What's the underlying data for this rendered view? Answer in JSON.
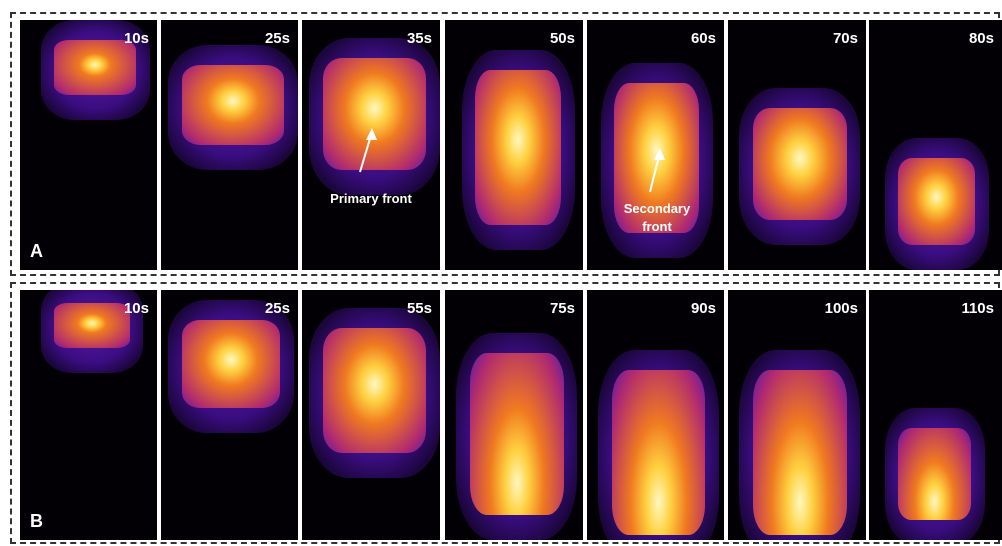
{
  "panels": [
    {
      "label": "A",
      "frames": [
        {
          "time": "10s"
        },
        {
          "time": "25s"
        },
        {
          "time": "35s"
        },
        {
          "time": "50s"
        },
        {
          "time": "60s"
        },
        {
          "time": "70s"
        },
        {
          "time": "80s"
        }
      ],
      "annotations": [
        {
          "text": "Primary front"
        },
        {
          "text": "Secondary front"
        }
      ]
    },
    {
      "label": "B",
      "frames": [
        {
          "time": "10s"
        },
        {
          "time": "25s"
        },
        {
          "time": "55s"
        },
        {
          "time": "75s"
        },
        {
          "time": "90s"
        },
        {
          "time": "100s"
        },
        {
          "time": "110s"
        }
      ]
    }
  ]
}
